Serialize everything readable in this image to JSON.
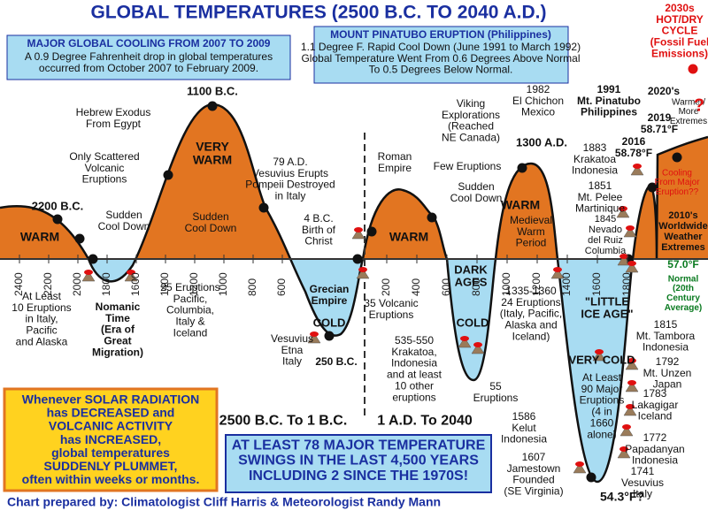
{
  "title": "GLOBAL TEMPERATURES (2500 B.C. TO 2040 A.D.)",
  "axis": {
    "bc_ticks": [
      "2400",
      "2200",
      "2000",
      "1800",
      "1600",
      "1400",
      "1200",
      "1000",
      "800",
      "600"
    ],
    "ad_ticks": [
      "200",
      "400",
      "600",
      "800",
      "1000",
      "1200",
      "1400",
      "1600",
      "1800"
    ]
  },
  "labels": {
    "cooling_head": [
      "MAJOR GLOBAL COOLING FROM 2007 TO 2009"
    ],
    "cooling_body": [
      "A 0.9 Degree Fahrenheit drop in global temperatures",
      "occurred from October 2007 to February 2009."
    ],
    "pina_head": [
      "MOUNT PINATUBO ERUPTION (Philippines)"
    ],
    "pina_body": [
      "1.1 Degree F. Rapid Cool Down (June 1991 to March 1992)",
      "Global Temperature Went From 0.6 Degrees Above Normal",
      "To 0.5 Degrees Below Normal."
    ],
    "cycle": [
      "2030s",
      "HOT/DRY",
      "CYCLE",
      "(Fossil Fuel",
      "Emissions)"
    ],
    "bc1100": [
      "1100 B.C."
    ],
    "exodus": [
      "Hebrew Exodus",
      "From Egypt"
    ],
    "scattered": [
      "Only Scattered",
      "Volcanic",
      "Eruptions"
    ],
    "verywarm": [
      "VERY",
      "WARM"
    ],
    "sudden1": [
      "Sudden",
      "Cool Down"
    ],
    "bc2200": [
      "2200 B.C."
    ],
    "warm1": [
      "WARM"
    ],
    "sudden2": [
      "Sudden",
      "Cool Down"
    ],
    "ad79": [
      "79 A.D.",
      "Vesuvius Erupts",
      "Pompeii Destroyed",
      "in Italy"
    ],
    "bc4": [
      "4 B.C.",
      "Birth of",
      "Christ"
    ],
    "roman": [
      "Roman",
      "Empire"
    ],
    "warm2": [
      "WARM"
    ],
    "viking": [
      "Viking",
      "Explorations",
      "(Reached",
      "NE Canada)"
    ],
    "chichon": [
      "1982",
      "El Chichon",
      "Mexico"
    ],
    "pinatubo91": [
      "1991",
      "Mt. Pinatubo",
      "Philippines"
    ],
    "ad1300": [
      "1300 A.D."
    ],
    "few": [
      "Few Eruptions"
    ],
    "sudden3": [
      "Sudden",
      "Cool Down"
    ],
    "warm3": [
      "WARM"
    ],
    "medieval": [
      "Medieval",
      "Warm",
      "Period"
    ],
    "krakatoa1883": [
      "1883",
      "Krakatoa",
      "Indonesia"
    ],
    "pelee": [
      "1851",
      "Mt. Pelee",
      "Martinique"
    ],
    "ruiz": [
      "1845",
      "Nevado",
      "del Ruiz",
      "Columbia"
    ],
    "t2016": [
      "2016",
      "58.78°F"
    ],
    "t2019": [
      "2019",
      "58.71°F"
    ],
    "t2020": [
      "2020's"
    ],
    "warmer": [
      "Warmer/",
      "More",
      "Extremes"
    ],
    "question": [
      "?"
    ],
    "cooling_from": [
      "Cooling",
      "From Major",
      "Eruption??"
    ],
    "t2010": [
      "2010's",
      "Worldwide",
      "Weather",
      "Extremes"
    ],
    "normal_temp": [
      "57.0°F"
    ],
    "normal": [
      "Normal",
      "(20th",
      "Century",
      "Average)"
    ],
    "atleast10": [
      "At Least",
      "10 Eruptions",
      "in Italy,",
      "Pacific",
      "and Alaska"
    ],
    "nomanic": [
      "Nomanic",
      "Time",
      "(Era of",
      "Great",
      "Migration)"
    ],
    "eruptions25": [
      "25 Eruptions",
      "Pacific,",
      "Columbia,",
      "Italy &",
      "Iceland"
    ],
    "grecian": [
      "Grecian",
      "Empire"
    ],
    "cold1": [
      "COLD"
    ],
    "vesuvius": [
      "Vesuvius",
      "Etna",
      "Italy"
    ],
    "bc250": [
      "250 B.C."
    ],
    "erup35": [
      "35 Volcanic",
      "Eruptions"
    ],
    "darkages": [
      "DARK",
      "AGES"
    ],
    "cold2": [
      "COLD"
    ],
    "krakatoa535": [
      "535-550",
      "Krakatoa,",
      "Indonesia",
      "and at least",
      "10 other",
      "eruptions"
    ],
    "erup55": [
      "55",
      "Eruptions"
    ],
    "e1335": [
      "1335-1360",
      "24 Eruptions",
      "(Italy, Pacific,",
      "Alaska and",
      "Iceland)"
    ],
    "lia": [
      "\"LITTLE",
      "ICE AGE\""
    ],
    "verycold": [
      "VERY COLD"
    ],
    "atleast90": [
      "At Least",
      "90 Major",
      "Eruptions",
      "(4 in",
      "1660",
      "alone)"
    ],
    "tambora": [
      "1815",
      "Mt. Tambora",
      "Indonesia"
    ],
    "unzen": [
      "1792",
      "Mt. Unzen",
      "Japan"
    ],
    "laki": [
      "1783",
      "Lakagigar",
      "Iceland"
    ],
    "papa": [
      "1772",
      "Papadanyan",
      "Indonesia"
    ],
    "vesuv1741": [
      "1741",
      "Vesuvius",
      "Italy"
    ],
    "kelut": [
      "1586",
      "Kelut",
      "Indonesia"
    ],
    "jamestown": [
      "1607",
      "Jamestown",
      "Founded",
      "(SE Virginia)"
    ],
    "f543": [
      "54.3°F?"
    ],
    "bc_range": [
      "2500 B.C. To 1 B.C."
    ],
    "ad_range": [
      "1 A.D. To 2040"
    ],
    "solar": [
      "Whenever SOLAR RADIATION",
      "has DECREASED and",
      "VOLCANIC ACTIVITY",
      "has INCREASED,",
      "global temperatures",
      "SUDDENLY PLUMMET,",
      "often within weeks or months."
    ],
    "swings": [
      "AT LEAST 78 MAJOR TEMPERATURE",
      "SWINGS IN THE LAST 4,500 YEARS",
      "INCLUDING 2 SINCE THE 1970S!"
    ],
    "credit": [
      "Chart prepared by: Climatologist Cliff Harris & Meteorologist Randy Mann"
    ]
  }
}
